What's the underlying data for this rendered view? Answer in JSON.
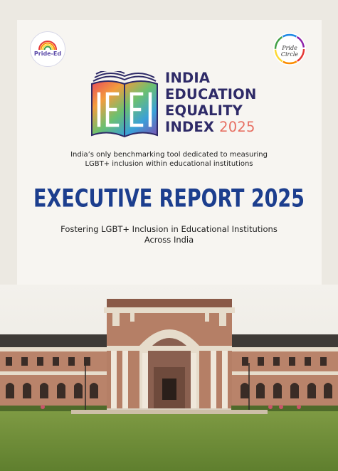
{
  "logos": {
    "left_text": "Pride-Ed",
    "right_text": "Pride Circle"
  },
  "index": {
    "line1": "INDIA",
    "line2": "EDUCATION",
    "line3": "EQUALITY",
    "line4": "INDEX",
    "year": "2025"
  },
  "tagline": {
    "line1": "India’s only benchmarking tool dedicated to measuring",
    "line2": "LGBT+ inclusion within educational institutions"
  },
  "report_title": "EXECUTIVE REPORT 2025",
  "subheading": {
    "line1": "Fostering LGBT+ Inclusion in Educational Institutions",
    "line2": "Across India"
  },
  "colors": {
    "navy_title": "#1c3e8e",
    "index_purple": "#2e2a67",
    "year_coral": "#e76f62"
  }
}
